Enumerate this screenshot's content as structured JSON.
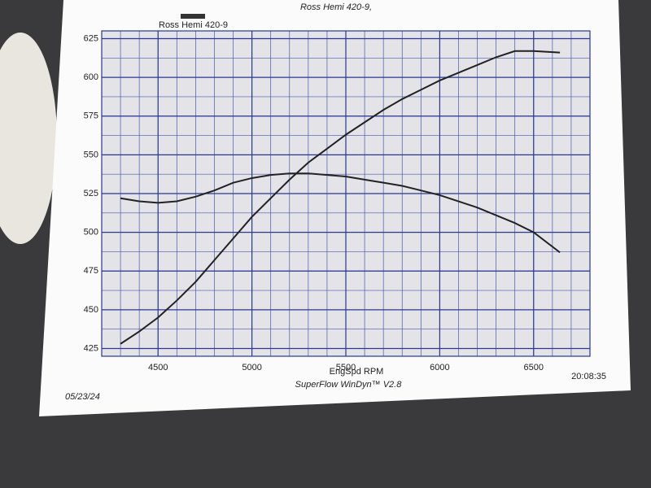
{
  "chart_data": {
    "type": "line",
    "title": "Ross Hemi 420-9,",
    "legend": {
      "label": "Ross Hemi 420-9",
      "color": "#333333"
    },
    "xlabel": "EngSpd  RPM",
    "footer": "SuperFlow WinDyn™ V2.8",
    "date": "05/23/24",
    "time": "20:08:35",
    "x": [
      4300,
      4400,
      4500,
      4600,
      4700,
      4800,
      4900,
      5000,
      5100,
      5200,
      5300,
      5400,
      5500,
      5600,
      5700,
      5800,
      5900,
      6000,
      6100,
      6200,
      6300,
      6400,
      6500,
      6640
    ],
    "series": [
      {
        "color": "#222222",
        "values": [
          428,
          436,
          445,
          456,
          468,
          482,
          496,
          510,
          522,
          534,
          545,
          554,
          563,
          571,
          579,
          586,
          592,
          598,
          603,
          608,
          613,
          617,
          617,
          616
        ]
      },
      {
        "color": "#222222",
        "values": [
          522,
          520,
          519,
          520,
          523,
          527,
          532,
          535,
          537,
          538,
          538,
          537,
          536,
          534,
          532,
          530,
          527,
          524,
          520,
          516,
          511,
          506,
          500,
          487
        ]
      }
    ],
    "xlim": [
      4200,
      6800
    ],
    "xticks": [
      4500,
      5000,
      5500,
      6000,
      6500
    ],
    "ylim": [
      420,
      630
    ],
    "yticks": [
      425,
      450,
      475,
      500,
      525,
      550,
      575,
      600,
      625
    ],
    "grid": true,
    "grid_step": {
      "x": 100,
      "y": 12.5
    }
  }
}
